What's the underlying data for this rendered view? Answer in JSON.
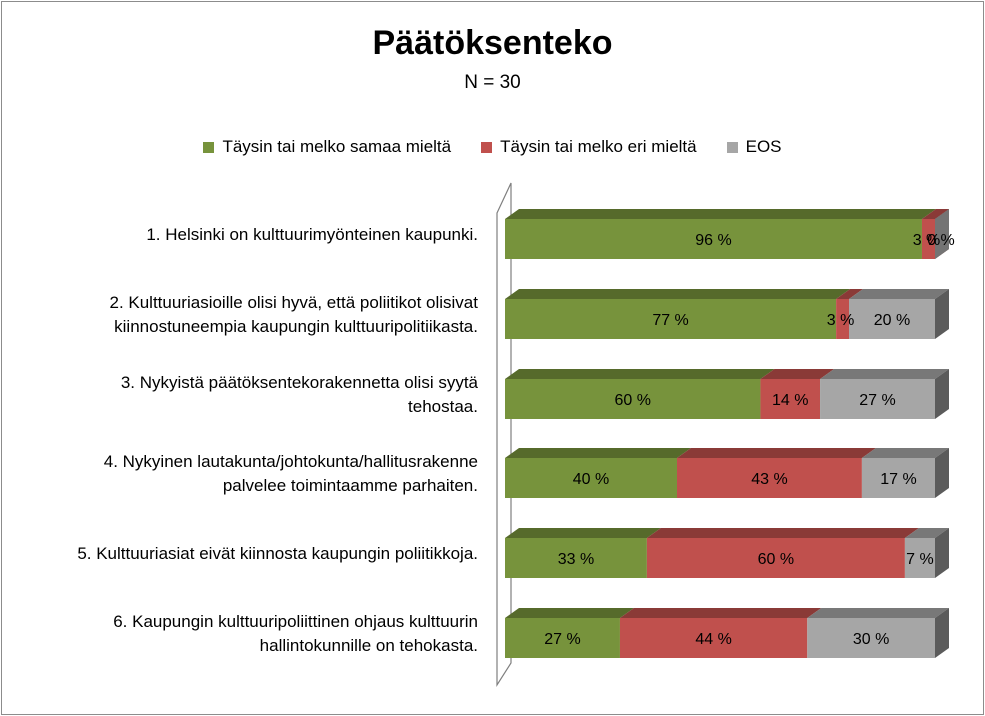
{
  "chart_data": {
    "type": "bar",
    "orientation": "horizontal",
    "stacked": true,
    "percent_stacked": true,
    "style": "3d",
    "title": "Päätöksenteko",
    "subtitle": "N = 30",
    "legend_position": "top",
    "categories": [
      "1. Helsinki on kulttuurimyönteinen kaupunki.",
      "2. Kulttuuriasioille olisi hyvä, että poliitikot olisivat kiinnostuneempia kaupungin kulttuuripolitiikasta.",
      "3. Nykyistä päätöksentekorakennetta olisi syytä tehostaa.",
      "4. Nykyinen lautakunta/johtokunta/hallitusrakenne palvelee toimintaamme parhaiten.",
      "5. Kulttuuriasiat eivät kiinnosta kaupungin poliitikkoja.",
      "6. Kaupungin kulttuuripoliittinen ohjaus kulttuurin hallintokunnille on tehokasta."
    ],
    "category_lines": [
      [
        "1. Helsinki on kulttuurimyönteinen kaupunki."
      ],
      [
        "2. Kulttuuriasioille olisi hyvä, että poliitikot olisivat",
        "kiinnostuneempia kaupungin kulttuuripolitiikasta."
      ],
      [
        "3. Nykyistä päätöksentekorakennetta olisi syytä",
        "tehostaa."
      ],
      [
        "4. Nykyinen lautakunta/johtokunta/hallitusrakenne",
        "palvelee toimintaamme parhaiten."
      ],
      [
        "5. Kulttuuriasiat eivät kiinnosta kaupungin poliitikkoja."
      ],
      [
        "6. Kaupungin kulttuuripoliittinen ohjaus kulttuurin",
        "hallintokunnille on tehokasta."
      ]
    ],
    "series": [
      {
        "name": "Täysin tai melko samaa mieltä",
        "color": "#77933c",
        "values": [
          96,
          77,
          60,
          40,
          33,
          27
        ],
        "labels": [
          "96 %",
          "77 %",
          "60 %",
          "40 %",
          "33 %",
          "27 %"
        ]
      },
      {
        "name": "Täysin tai melko eri mieltä",
        "color": "#c0504d",
        "values": [
          3,
          3,
          14,
          43,
          60,
          44
        ],
        "labels": [
          "3 %",
          "3 %",
          "14 %",
          "43 %",
          "60 %",
          "44 %"
        ]
      },
      {
        "name": "EOS",
        "color": "#a6a6a6",
        "values": [
          0,
          20,
          27,
          17,
          7,
          30
        ],
        "labels": [
          "0 %",
          "20 %",
          "27 %",
          "17 %",
          "7 %",
          "30 %"
        ]
      }
    ],
    "xlim": [
      0,
      100
    ]
  }
}
